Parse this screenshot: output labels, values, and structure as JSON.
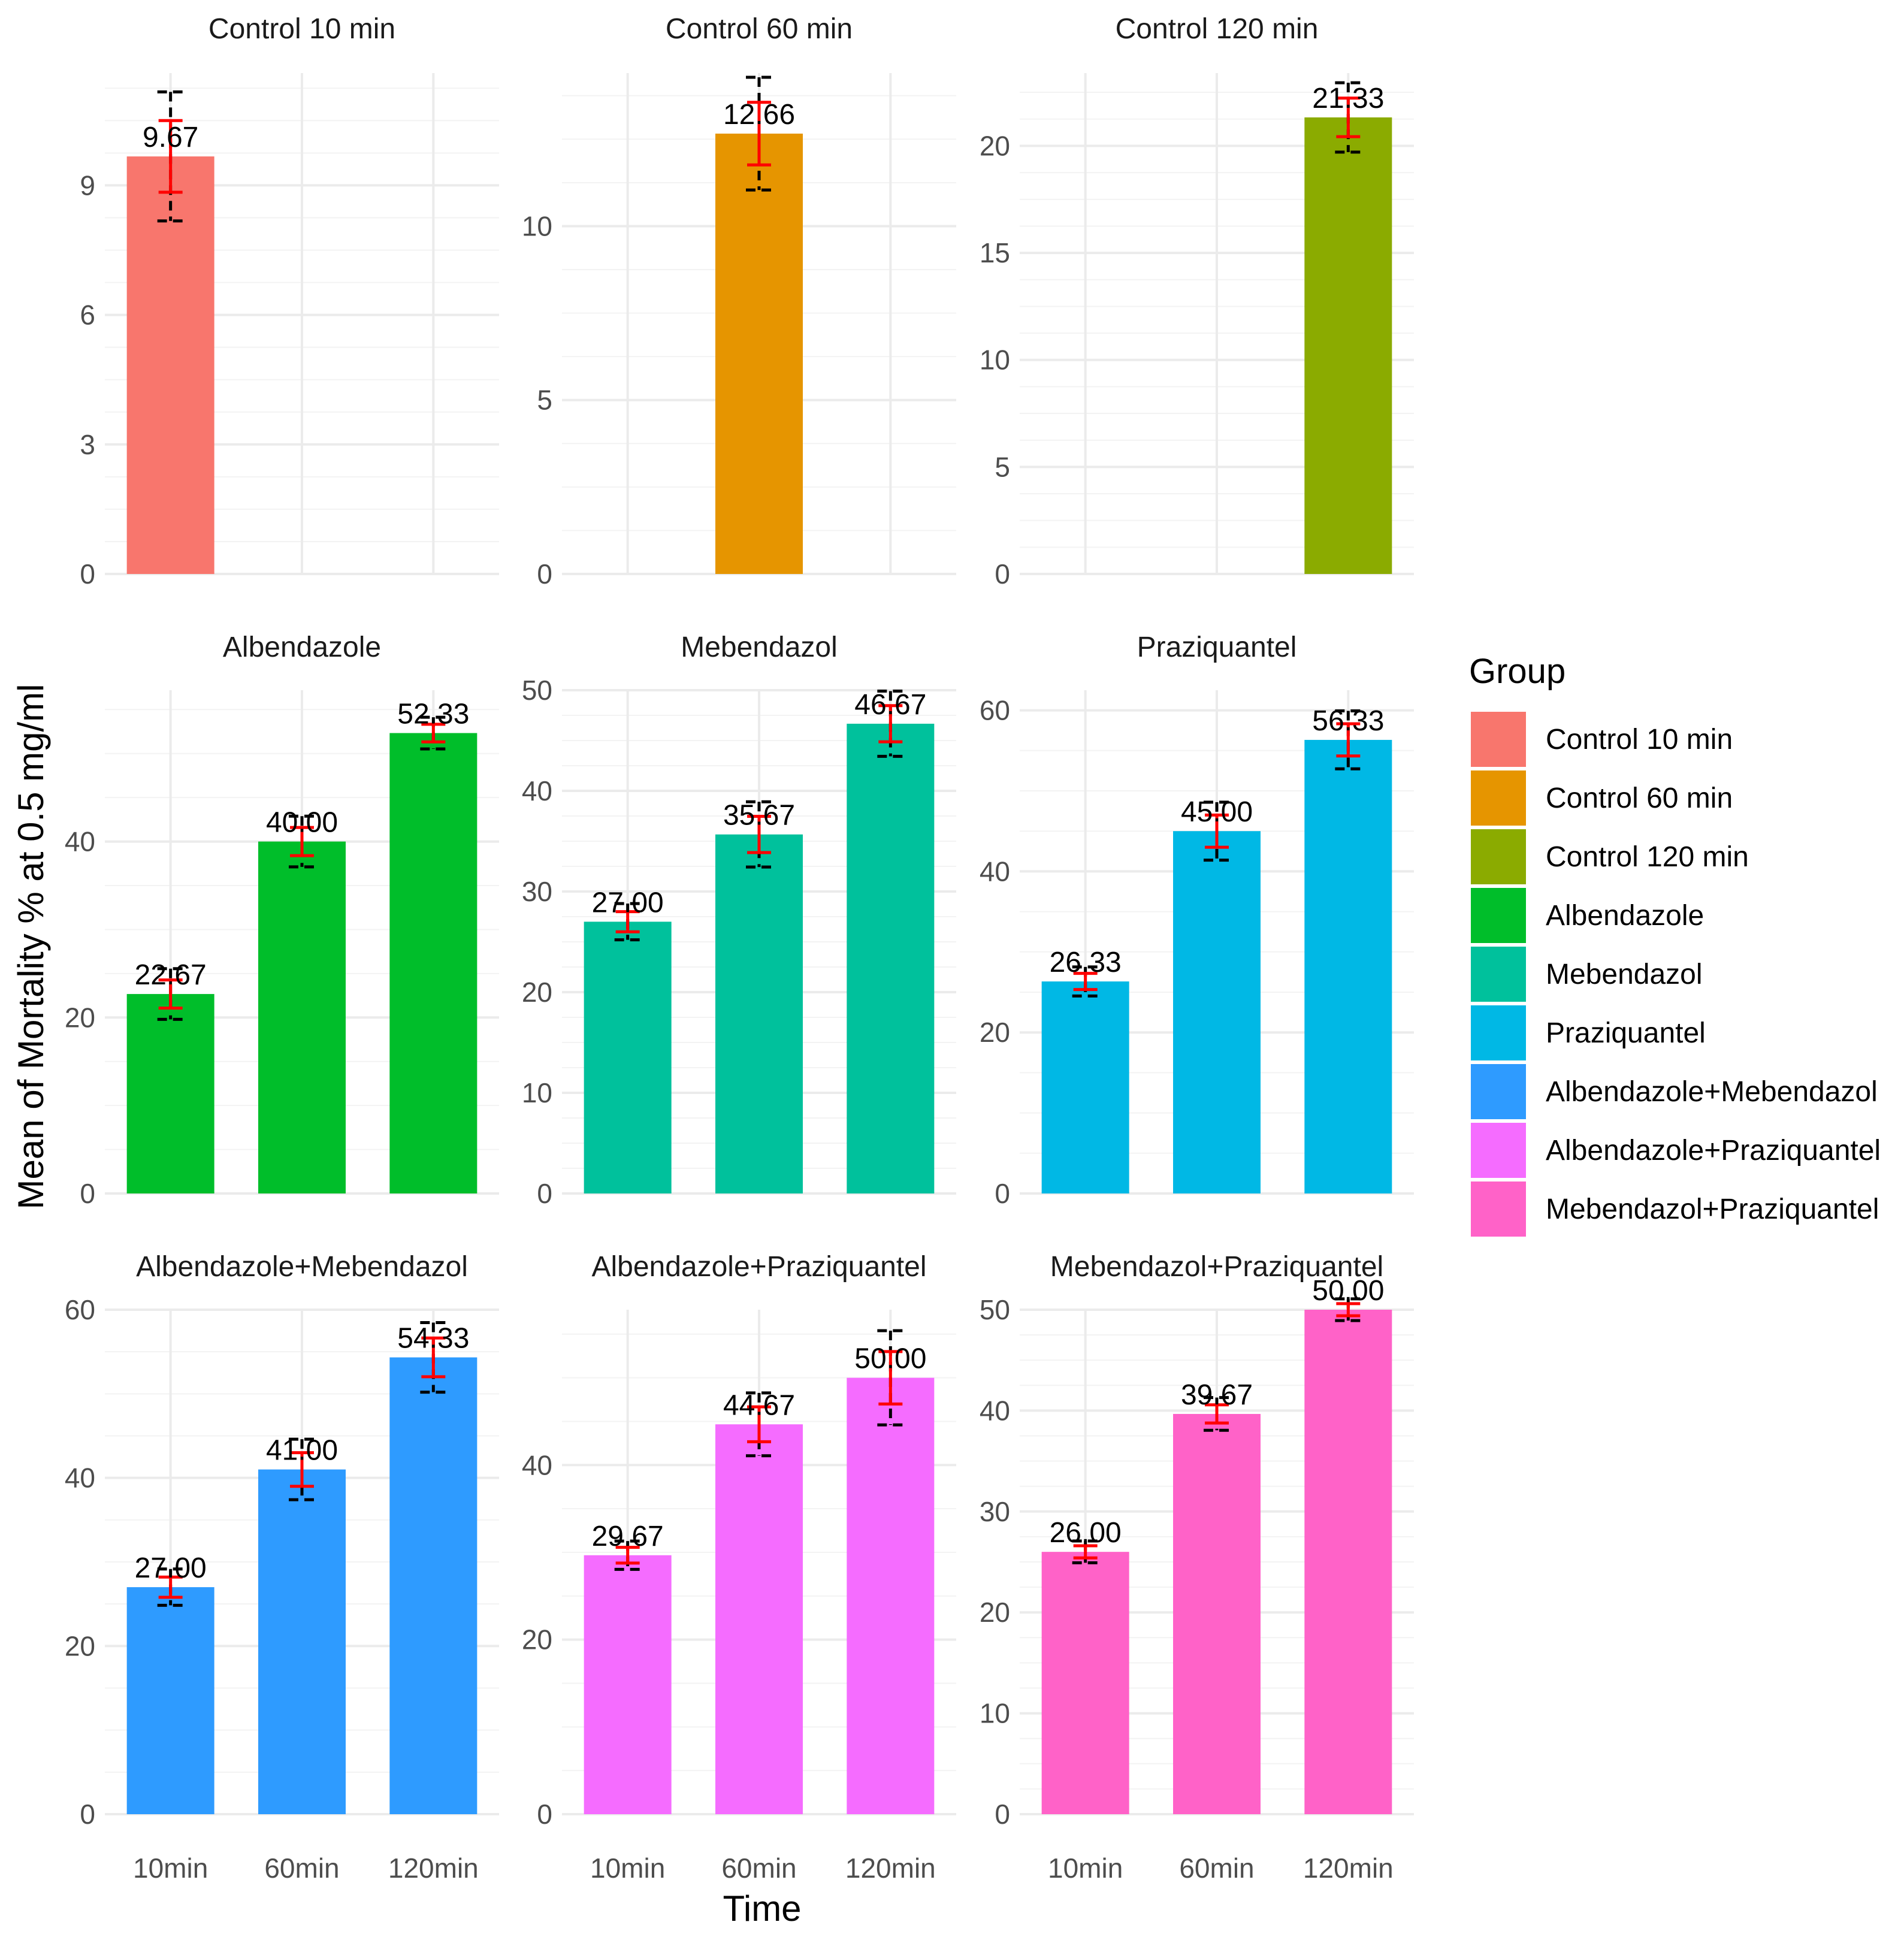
{
  "chart_data": {
    "type": "bar",
    "xlabel": "Time",
    "ylabel": "Mean of Mortality % at 0.5 mg/ml",
    "categories": [
      "10min",
      "60min",
      "120min"
    ],
    "legend": {
      "title": "Group",
      "position": "right",
      "entries": [
        {
          "label": "Control 10 min",
          "color": "#F8766D"
        },
        {
          "label": "Control 60 min",
          "color": "#E69500"
        },
        {
          "label": "Control 120 min",
          "color": "#8BAB00"
        },
        {
          "label": "Albendazole",
          "color": "#00BE2A"
        },
        {
          "label": "Mebendazol",
          "color": "#00C19C"
        },
        {
          "label": "Praziquantel",
          "color": "#00B8E5"
        },
        {
          "label": "Albendazole+Mebendazol",
          "color": "#2E9BFF"
        },
        {
          "label": "Albendazole+Praziquantel",
          "color": "#F56CFF"
        },
        {
          "label": "Mebendazol+Praziquantel",
          "color": "#FF62C8"
        }
      ]
    },
    "panels": [
      {
        "title": "Control 10 min",
        "color": "#F8766D",
        "ylim": [
          0,
          11.6
        ],
        "yticks": [
          "0",
          "3",
          "6",
          "9"
        ],
        "ytick_values": [
          0,
          3,
          6,
          9
        ],
        "minor_step": 1.5,
        "bars": [
          {
            "category": "10min",
            "value": 9.67,
            "label": "9.67",
            "err": 0.83
          }
        ]
      },
      {
        "title": "Control 60 min",
        "color": "#E69500",
        "ylim": [
          0,
          14.4
        ],
        "yticks": [
          "0",
          "5",
          "10"
        ],
        "ytick_values": [
          0,
          5,
          10
        ],
        "minor_step": 2.5,
        "bars": [
          {
            "category": "60min",
            "value": 12.66,
            "label": "12.66",
            "err": 0.9
          }
        ]
      },
      {
        "title": "Control 120 min",
        "color": "#8BAB00",
        "ylim": [
          0,
          23.4
        ],
        "yticks": [
          "0",
          "5",
          "10",
          "15",
          "20"
        ],
        "ytick_values": [
          0,
          5,
          10,
          15,
          20
        ],
        "minor_step": 2.5,
        "bars": [
          {
            "category": "120min",
            "value": 21.33,
            "label": "21.33",
            "err": 0.9
          }
        ]
      },
      {
        "title": "Albendazole",
        "color": "#00BE2A",
        "ylim": [
          0,
          57.2
        ],
        "yticks": [
          "0",
          "20",
          "40"
        ],
        "ytick_values": [
          0,
          20,
          40
        ],
        "minor_step": 10,
        "bars": [
          {
            "category": "10min",
            "value": 22.67,
            "label": "22.67",
            "err": 1.6
          },
          {
            "category": "60min",
            "value": 40.0,
            "label": "40.00",
            "err": 1.6
          },
          {
            "category": "120min",
            "value": 52.33,
            "label": "52.33",
            "err": 1.0
          }
        ]
      },
      {
        "title": "Mebendazol",
        "color": "#00C19C",
        "ylim": [
          0,
          50.0
        ],
        "yticks": [
          "0",
          "10",
          "20",
          "30",
          "40",
          "50"
        ],
        "ytick_values": [
          0,
          10,
          20,
          30,
          40,
          50
        ],
        "minor_step": 5,
        "bars": [
          {
            "category": "10min",
            "value": 27.0,
            "label": "27.00",
            "err": 1.0
          },
          {
            "category": "60min",
            "value": 35.67,
            "label": "35.67",
            "err": 1.8
          },
          {
            "category": "120min",
            "value": 46.67,
            "label": "46.67",
            "err": 1.8
          }
        ]
      },
      {
        "title": "Praziquantel",
        "color": "#00B8E5",
        "ylim": [
          0,
          62.5
        ],
        "yticks": [
          "0",
          "20",
          "40",
          "60"
        ],
        "ytick_values": [
          0,
          20,
          40,
          60
        ],
        "minor_step": 10,
        "bars": [
          {
            "category": "10min",
            "value": 26.33,
            "label": "26.33",
            "err": 1.0
          },
          {
            "category": "60min",
            "value": 45.0,
            "label": "45.00",
            "err": 2.0
          },
          {
            "category": "120min",
            "value": 56.33,
            "label": "56.33",
            "err": 2.0
          }
        ]
      },
      {
        "title": "Albendazole+Mebendazol",
        "color": "#2E9BFF",
        "ylim": [
          0,
          60.0
        ],
        "yticks": [
          "0",
          "20",
          "40",
          "60"
        ],
        "ytick_values": [
          0,
          20,
          40,
          60
        ],
        "minor_step": 10,
        "bars": [
          {
            "category": "10min",
            "value": 27.0,
            "label": "27.00",
            "err": 1.2
          },
          {
            "category": "60min",
            "value": 41.0,
            "label": "41.00",
            "err": 2.0
          },
          {
            "category": "120min",
            "value": 54.33,
            "label": "54.33",
            "err": 2.3
          }
        ]
      },
      {
        "title": "Albendazole+Praziquantel",
        "color": "#F56CFF",
        "ylim": [
          0,
          57.8
        ],
        "yticks": [
          "0",
          "20",
          "40"
        ],
        "ytick_values": [
          0,
          20,
          40
        ],
        "minor_step": 10,
        "bars": [
          {
            "category": "10min",
            "value": 29.67,
            "label": "29.67",
            "err": 0.9
          },
          {
            "category": "60min",
            "value": 44.67,
            "label": "44.67",
            "err": 2.0
          },
          {
            "category": "120min",
            "value": 50.0,
            "label": "50.00",
            "err": 3.0
          }
        ]
      },
      {
        "title": "Mebendazol+Praziquantel",
        "color": "#FF62C8",
        "ylim": [
          0,
          50.0
        ],
        "yticks": [
          "0",
          "10",
          "20",
          "30",
          "40",
          "50"
        ],
        "ytick_values": [
          0,
          10,
          20,
          30,
          40,
          50
        ],
        "minor_step": 5,
        "bars": [
          {
            "category": "10min",
            "value": 26.0,
            "label": "26.00",
            "err": 0.6
          },
          {
            "category": "60min",
            "value": 39.67,
            "label": "39.67",
            "err": 0.9
          },
          {
            "category": "120min",
            "value": 50.0,
            "label": "50.00",
            "err": 0.6
          }
        ]
      }
    ]
  }
}
